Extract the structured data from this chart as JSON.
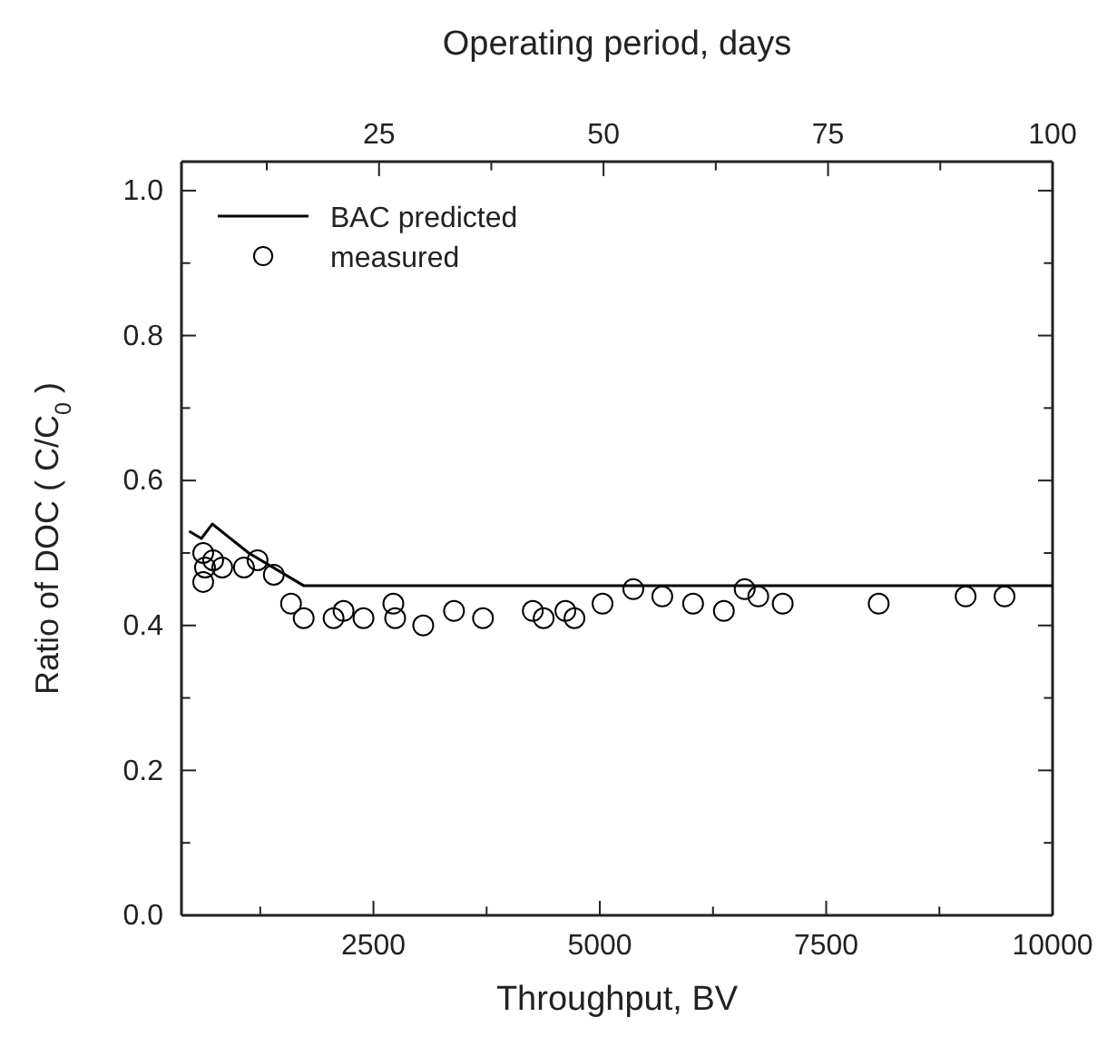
{
  "chart_data": {
    "type": "scatter",
    "xlabel": "Throughput, BV",
    "ylabel": "Ratio of DOC ( C/C$_{0}$ )",
    "x2label": "Operating period, days",
    "xlim": [
      380,
      10000
    ],
    "xticks": [
      {
        "value": 1250,
        "label": null
      },
      2500,
      {
        "value": 3750,
        "label": null
      },
      5000,
      {
        "value": 6250,
        "label": null
      },
      7500,
      {
        "value": 8750,
        "label": null
      },
      10000
    ],
    "x2lim": [
      3,
      100
    ],
    "x2ticks": [
      {
        "value": 12.5,
        "label": null
      },
      25,
      {
        "value": 37.5,
        "label": null
      },
      50,
      {
        "value": 62.5,
        "label": null
      },
      75,
      {
        "value": 87.5,
        "label": null
      },
      100
    ],
    "ylim": [
      0,
      1.04
    ],
    "yticks": [
      "0.0",
      {
        "value": 0.1,
        "label": null
      },
      0.2,
      {
        "value": 0.3,
        "label": null
      },
      0.4,
      {
        "value": 0.5,
        "label": null
      },
      0.6,
      {
        "value": 0.7,
        "label": null
      },
      0.8,
      {
        "value": 0.9,
        "label": null
      },
      "1.0"
    ],
    "legend": "top left",
    "grid": false,
    "series": [
      {
        "name": "BAC predicted",
        "type": "line",
        "color": "#000000",
        "marker": "none",
        "line_style": "solid",
        "x": [
          464,
          600,
          720,
          1123,
          1526,
          1728,
          10000
        ],
        "values": [
          0.53,
          0.52,
          0.54,
          0.5,
          0.47,
          0.455,
          0.455
        ]
      },
      {
        "name": "measured",
        "color": "#000000",
        "marker": "circle",
        "x": [
          620,
          640,
          620,
          730,
          830,
          1070,
          1220,
          1400,
          1590,
          1730,
          2060,
          2170,
          2390,
          2720,
          2740,
          3050,
          3390,
          3710,
          4260,
          4380,
          4620,
          4720,
          5030,
          5370,
          5690,
          6030,
          6370,
          6600,
          6750,
          7020,
          8080,
          9040,
          9470
        ],
        "values": [
          0.5,
          0.48,
          0.46,
          0.49,
          0.48,
          0.48,
          0.49,
          0.47,
          0.43,
          0.41,
          0.41,
          0.42,
          0.41,
          0.43,
          0.41,
          0.4,
          0.42,
          0.41,
          0.42,
          0.41,
          0.42,
          0.41,
          0.43,
          0.45,
          0.44,
          0.43,
          0.42,
          0.45,
          0.44,
          0.43,
          0.43,
          0.44,
          0.44
        ]
      }
    ]
  }
}
